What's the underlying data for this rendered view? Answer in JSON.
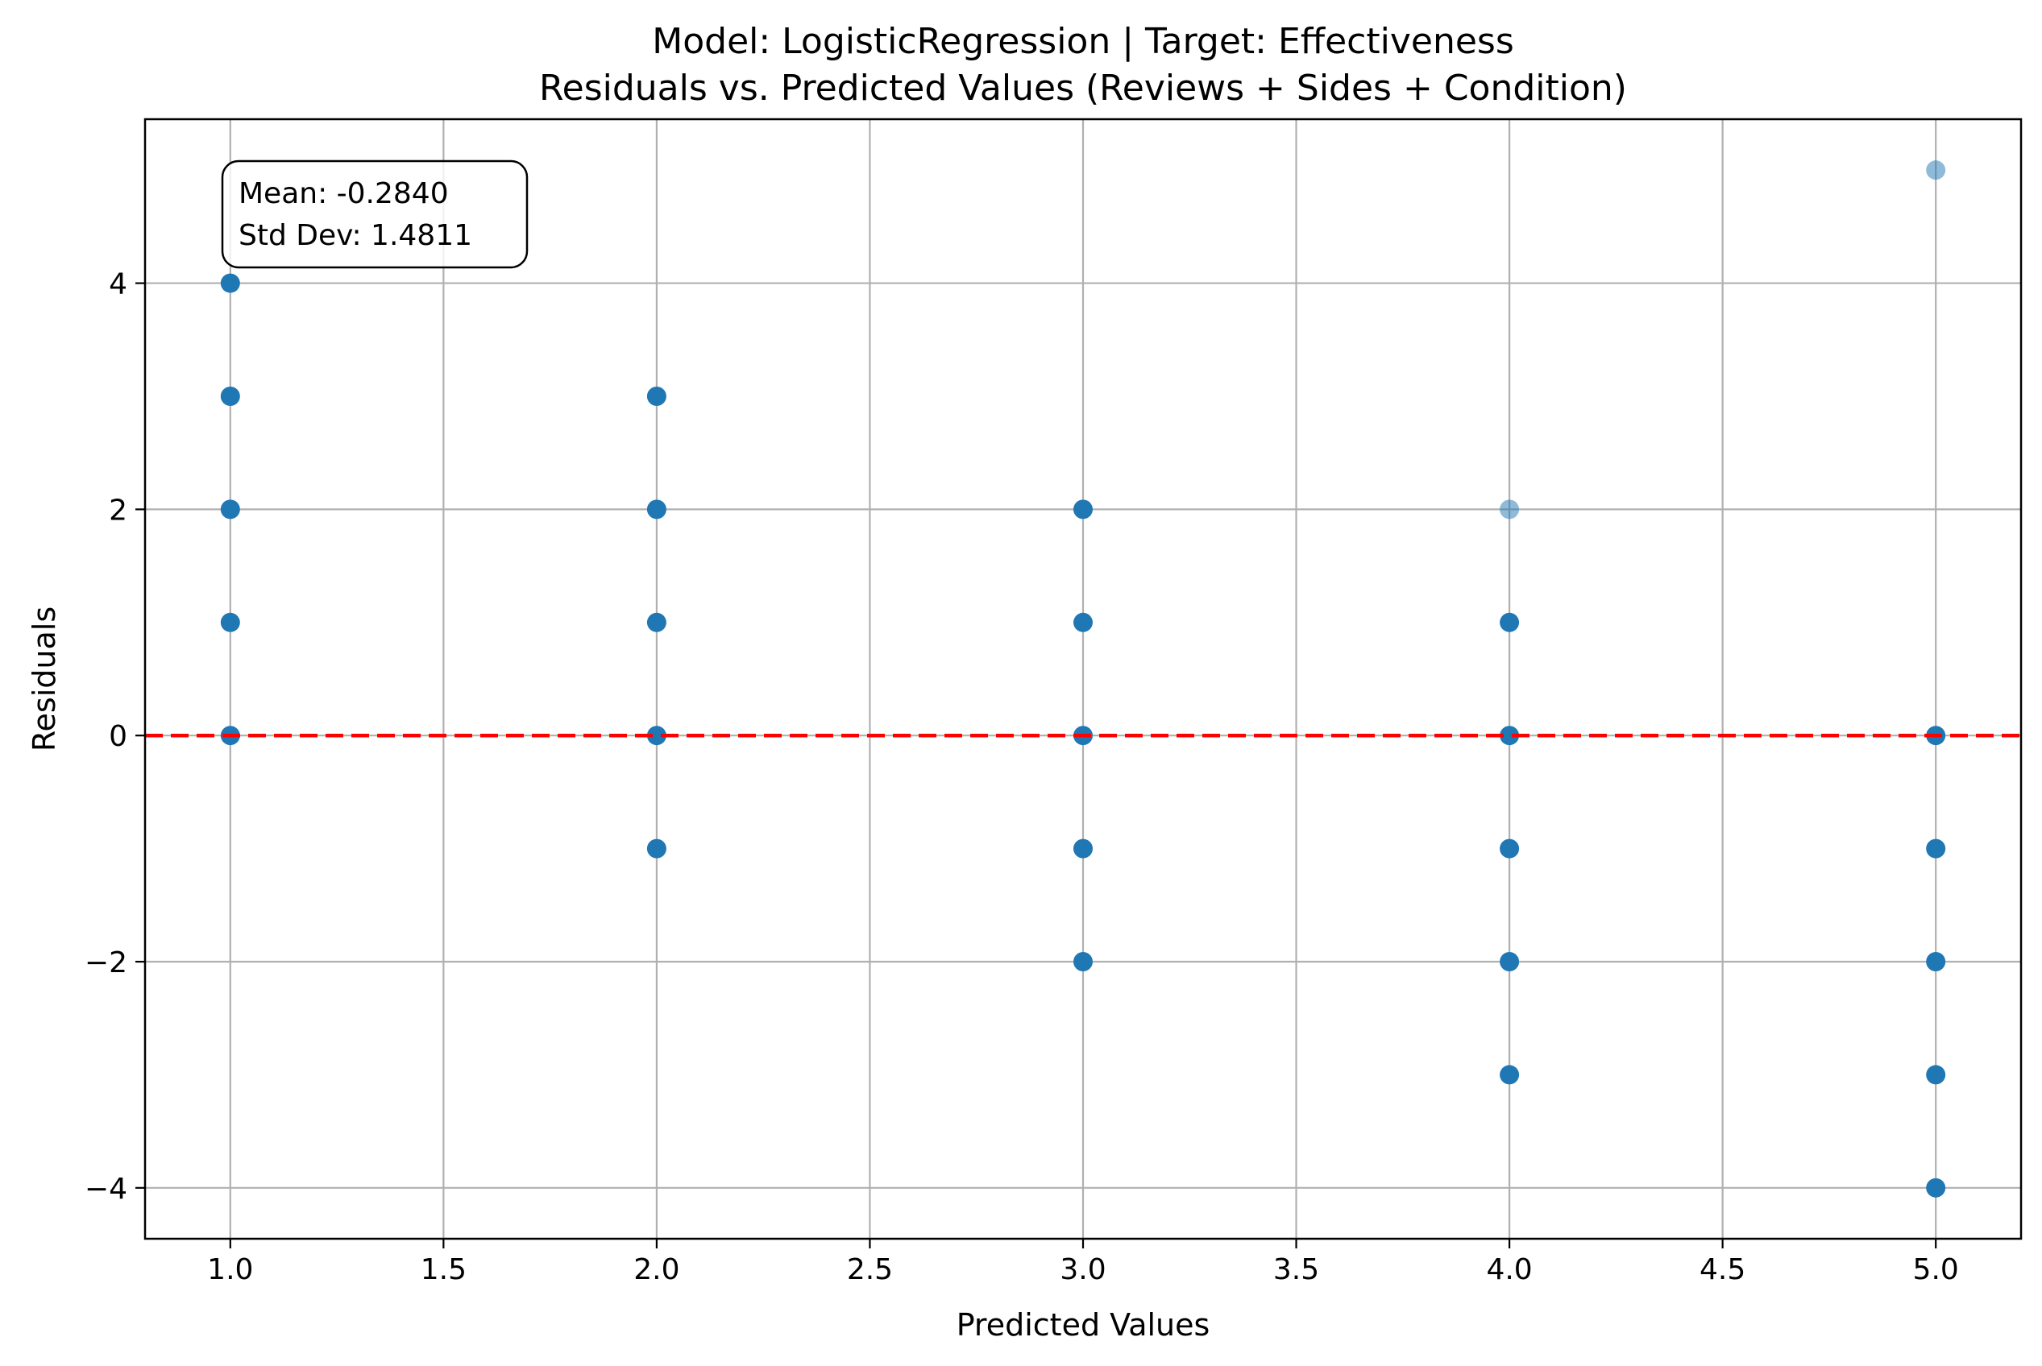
{
  "chart_data": {
    "type": "scatter",
    "title": "Model: LogisticRegression | Target: Effectiveness",
    "subtitle": "Residuals vs. Predicted Values (Reviews + Sides + Condition)",
    "xlabel": "Predicted Values",
    "ylabel": "Residuals",
    "xlim": [
      0.8,
      5.2
    ],
    "ylim": [
      -4.45,
      5.45
    ],
    "x_ticks": [
      1.0,
      1.5,
      2.0,
      2.5,
      3.0,
      3.5,
      4.0,
      4.5,
      5.0
    ],
    "x_tick_labels": [
      "1.0",
      "1.5",
      "2.0",
      "2.5",
      "3.0",
      "3.5",
      "4.0",
      "4.5",
      "5.0"
    ],
    "y_ticks": [
      -4,
      -2,
      0,
      2,
      4
    ],
    "y_tick_labels": [
      "−4",
      "−2",
      "0",
      "2",
      "4"
    ],
    "grid": true,
    "point_color": "#1f77b4",
    "reference_line": {
      "y": 0,
      "color": "#ff0000",
      "style": "dashed"
    },
    "annotation": {
      "lines": [
        "Mean: -0.2840",
        "Std Dev: 1.4811"
      ],
      "placement": "top-left"
    },
    "points": [
      {
        "x": 1,
        "y": 4,
        "density": "high"
      },
      {
        "x": 1,
        "y": 3,
        "density": "high"
      },
      {
        "x": 1,
        "y": 2,
        "density": "high"
      },
      {
        "x": 1,
        "y": 1,
        "density": "high"
      },
      {
        "x": 1,
        "y": 0,
        "density": "high"
      },
      {
        "x": 2,
        "y": 3,
        "density": "high"
      },
      {
        "x": 2,
        "y": 2,
        "density": "high"
      },
      {
        "x": 2,
        "y": 1,
        "density": "high"
      },
      {
        "x": 2,
        "y": 0,
        "density": "high"
      },
      {
        "x": 2,
        "y": -1,
        "density": "high"
      },
      {
        "x": 3,
        "y": 2,
        "density": "high"
      },
      {
        "x": 3,
        "y": 1,
        "density": "high"
      },
      {
        "x": 3,
        "y": 0,
        "density": "high"
      },
      {
        "x": 3,
        "y": -1,
        "density": "high"
      },
      {
        "x": 3,
        "y": -2,
        "density": "high"
      },
      {
        "x": 4,
        "y": 2,
        "density": "low"
      },
      {
        "x": 4,
        "y": 1,
        "density": "high"
      },
      {
        "x": 4,
        "y": 0,
        "density": "high"
      },
      {
        "x": 4,
        "y": -1,
        "density": "high"
      },
      {
        "x": 4,
        "y": -2,
        "density": "high"
      },
      {
        "x": 4,
        "y": -3,
        "density": "high"
      },
      {
        "x": 5,
        "y": 5,
        "density": "low"
      },
      {
        "x": 5,
        "y": 0,
        "density": "high"
      },
      {
        "x": 5,
        "y": -1,
        "density": "high"
      },
      {
        "x": 5,
        "y": -2,
        "density": "high"
      },
      {
        "x": 5,
        "y": -3,
        "density": "high"
      },
      {
        "x": 5,
        "y": -4,
        "density": "high"
      }
    ]
  }
}
